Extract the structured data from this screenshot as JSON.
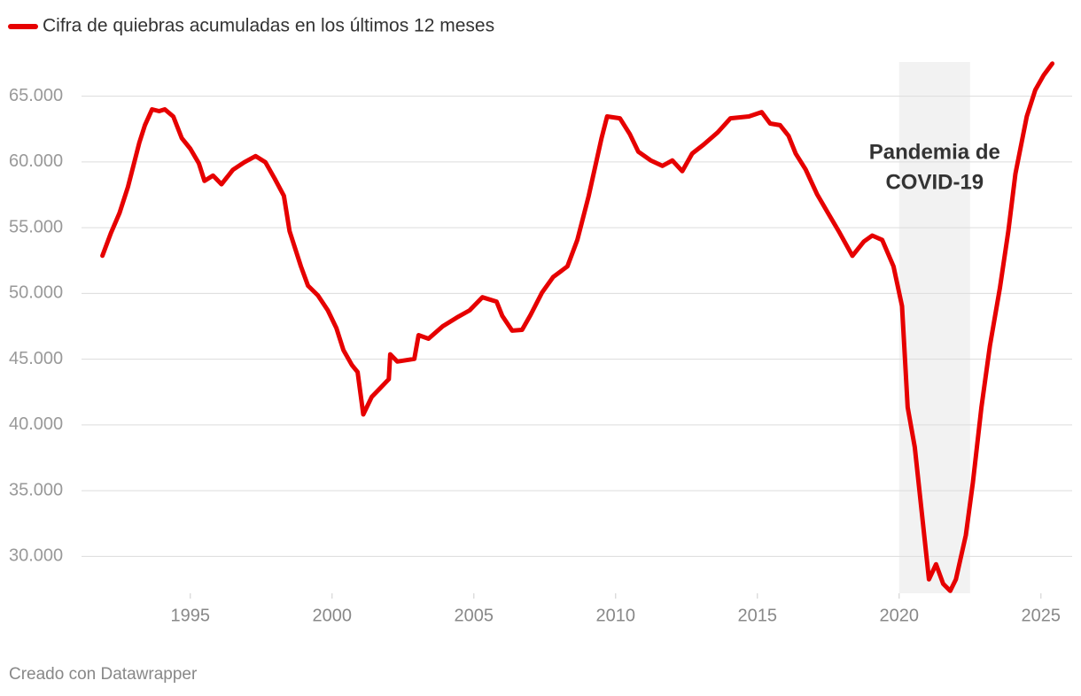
{
  "chart_data": {
    "type": "line",
    "series": [
      {
        "name": "Cifra de quiebras acumuladas en los últimos 12 meses",
        "color": "#e60000",
        "x": [
          1991.9,
          1992.2,
          1992.5,
          1992.8,
          1993.0,
          1993.2,
          1993.4,
          1993.65,
          1993.9,
          1994.1,
          1994.4,
          1994.7,
          1995.0,
          1995.3,
          1995.5,
          1995.8,
          1996.1,
          1996.5,
          1996.9,
          1997.3,
          1997.65,
          1997.97,
          1998.3,
          1998.5,
          1998.9,
          1999.15,
          1999.5,
          1999.85,
          2000.15,
          2000.4,
          2000.7,
          2000.9,
          2001.1,
          2001.4,
          2001.7,
          2002.0,
          2002.05,
          2002.3,
          2002.9,
          2003.05,
          2003.4,
          2003.9,
          2004.4,
          2004.85,
          2005.3,
          2005.8,
          2006.0,
          2006.35,
          2006.7,
          2007.0,
          2007.4,
          2007.8,
          2008.3,
          2008.65,
          2009.05,
          2009.5,
          2009.7,
          2010.15,
          2010.5,
          2010.8,
          2011.25,
          2011.65,
          2012.0,
          2012.35,
          2012.7,
          2013.1,
          2013.6,
          2014.05,
          2014.7,
          2015.15,
          2015.45,
          2015.8,
          2016.1,
          2016.35,
          2016.7,
          2017.1,
          2017.5,
          2017.9,
          2018.35,
          2018.75,
          2019.05,
          2019.4,
          2019.8,
          2020.1,
          2020.3,
          2020.55,
          2020.8,
          2021.05,
          2021.3,
          2021.55,
          2021.8,
          2022.0,
          2022.35,
          2022.6,
          2022.9,
          2023.2,
          2023.55,
          2023.85,
          2024.1,
          2024.5,
          2024.8,
          2025.1,
          2025.4
        ],
        "values": [
          52870,
          54600,
          56100,
          58100,
          59770,
          61450,
          62800,
          64000,
          63860,
          64000,
          63450,
          61800,
          61000,
          59900,
          58560,
          58960,
          58300,
          59400,
          59970,
          60440,
          59970,
          58760,
          57420,
          54740,
          52060,
          50590,
          49850,
          48710,
          47370,
          45690,
          44550,
          44020,
          40800,
          42140,
          42810,
          43480,
          45370,
          44820,
          45020,
          46830,
          46560,
          47500,
          48170,
          48710,
          49710,
          49380,
          48300,
          47170,
          47230,
          48370,
          50050,
          51260,
          52060,
          54070,
          57420,
          61780,
          63460,
          63320,
          62120,
          60780,
          60100,
          59700,
          60110,
          59300,
          60640,
          61310,
          62250,
          63320,
          63460,
          63790,
          62920,
          62790,
          61980,
          60640,
          59430,
          57560,
          56080,
          54610,
          52860,
          53940,
          54400,
          54070,
          52060,
          49040,
          41330,
          38310,
          33290,
          28260,
          29410,
          27930,
          27380,
          28260,
          31610,
          35630,
          41330,
          46020,
          50380,
          54740,
          59100,
          63460,
          65470,
          66610,
          67480
        ]
      }
    ],
    "xlim": [
      1988.6,
      2026.1
    ],
    "xticks": [
      1995,
      2000,
      2005,
      2010,
      2015,
      2020,
      2025
    ],
    "ylim": [
      27200,
      67600
    ],
    "yticks": [
      {
        "value": 30000,
        "label": "30.000"
      },
      {
        "value": 35000,
        "label": "35.000"
      },
      {
        "value": 40000,
        "label": "40.000"
      },
      {
        "value": 45000,
        "label": "45.000"
      },
      {
        "value": 50000,
        "label": "50.000"
      },
      {
        "value": 55000,
        "label": "55.000"
      },
      {
        "value": 60000,
        "label": "60.000"
      },
      {
        "value": 65000,
        "label": "65.000"
      }
    ],
    "grid": true,
    "highlight": {
      "x": [
        2020,
        2022.5
      ],
      "color": "#f2f2f2",
      "label": [
        "Pandemia de",
        "COVID-19"
      ]
    },
    "source": "Creado con Datawrapper"
  }
}
